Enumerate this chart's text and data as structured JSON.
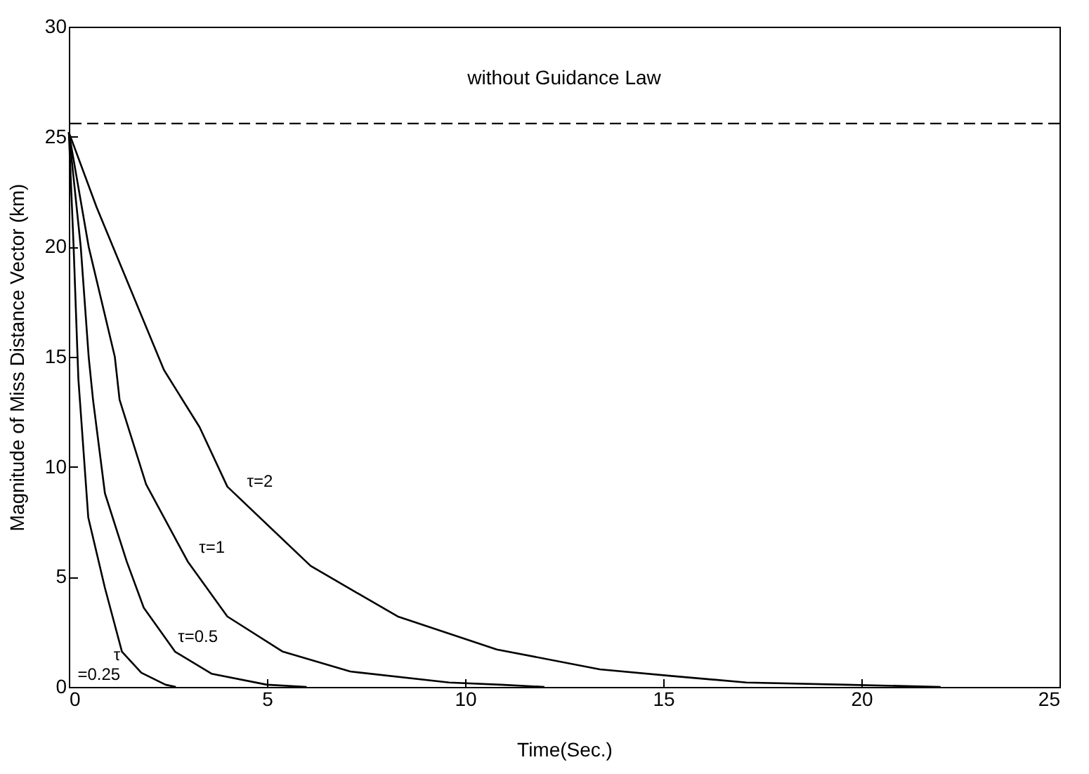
{
  "chart_data": {
    "type": "line",
    "xlabel": "Time(Sec.)",
    "ylabel": "Magnitude of Miss Distance Vector (km)",
    "xlim": [
      0,
      25
    ],
    "xticks": [
      0,
      5,
      10,
      15,
      20,
      25
    ],
    "ylim": [
      0,
      30
    ],
    "yticks": [
      0,
      5,
      10,
      15,
      20,
      25,
      30
    ],
    "grid": false,
    "legend": false,
    "marker": "none",
    "line_style": "solid",
    "series": [
      {
        "name": "τ\n=0.25",
        "color": "#000000",
        "x": [
          0,
          0.12,
          0.24,
          0.49,
          0.91,
          1.34,
          1.83,
          2.44,
          2.7
        ],
        "values": [
          25.2,
          20,
          14,
          7.7,
          4.5,
          1.6,
          0.64,
          0.1,
          0
        ]
      },
      {
        "name": "τ=0.5",
        "color": "#000000",
        "x": [
          0,
          0.3,
          0.5,
          0.61,
          0.91,
          1.46,
          1.89,
          2.68,
          3.6,
          5.0,
          6
        ],
        "values": [
          25.2,
          20,
          15,
          13.05,
          8.8,
          5.7,
          3.6,
          1.6,
          0.6,
          0.1,
          0
        ]
      },
      {
        "name": "τ=1",
        "color": "#000000",
        "x": [
          0,
          0.5,
          1.16,
          1.28,
          1.95,
          3.0,
          4.0,
          5.4,
          7.1,
          9.6,
          10.9,
          12
        ],
        "values": [
          25.2,
          20,
          15,
          13.05,
          9.2,
          5.7,
          3.2,
          1.6,
          0.7,
          0.2,
          0.1,
          0
        ]
      },
      {
        "name": "τ=2",
        "color": "#000000",
        "x": [
          0,
          0.7,
          2.4,
          3.3,
          4.0,
          6.1,
          8.3,
          10.8,
          13.4,
          15.2,
          17.1,
          19.6,
          22
        ],
        "values": [
          25.2,
          21.8,
          14.4,
          11.8,
          9.1,
          5.5,
          3.2,
          1.7,
          0.8,
          0.5,
          0.2,
          0.1,
          0
        ]
      }
    ],
    "ref_lines": [
      {
        "axis": "y",
        "value": 25.6,
        "label": "without Guidance Law",
        "color": "#000000",
        "line_style": "dashed"
      }
    ]
  }
}
